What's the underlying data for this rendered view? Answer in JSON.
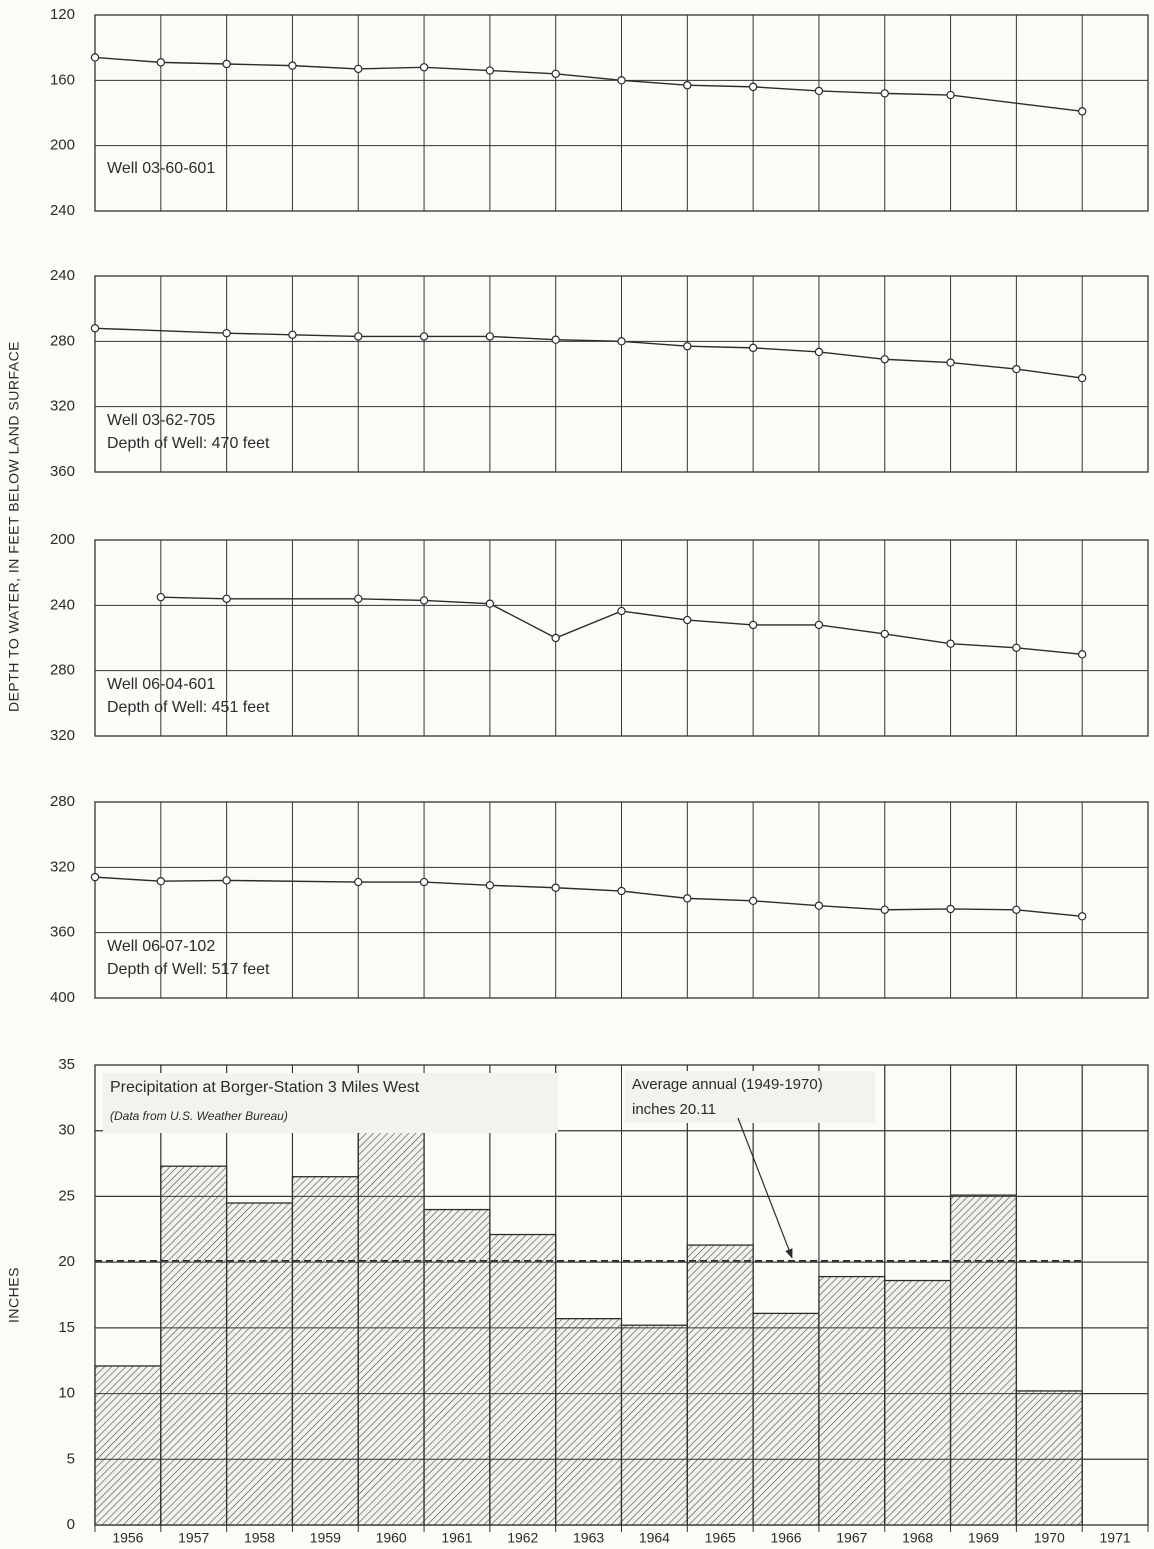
{
  "chart_data": [
    {
      "type": "line",
      "ylabel": "DEPTH TO WATER, IN FEET BELOW LAND SURFACE",
      "labels": [
        "Well 03-60-601"
      ],
      "x": [
        1956,
        1957,
        1958,
        1959,
        1960,
        1961,
        1962,
        1963,
        1964,
        1965,
        1966,
        1967,
        1968,
        1969,
        1971
      ],
      "values": [
        146,
        149,
        150,
        151,
        153,
        152,
        154,
        156,
        160,
        163,
        164,
        166.5,
        168,
        169,
        179
      ],
      "xlim": [
        1956,
        1972
      ],
      "ylim": [
        120,
        240
      ],
      "yticks": [
        120,
        160,
        200,
        240
      ],
      "y_inverted": true,
      "grid": true,
      "color": "#2b2b2b"
    },
    {
      "type": "line",
      "labels": [
        "Well 03-62-705",
        "Depth of Well: 470 feet"
      ],
      "x": [
        1956,
        1958,
        1959,
        1960,
        1961,
        1962,
        1963,
        1964,
        1965,
        1966,
        1967,
        1968,
        1969,
        1970,
        1971
      ],
      "values": [
        272,
        275,
        276,
        277,
        277,
        277,
        279,
        280,
        283,
        284,
        286.5,
        291,
        293,
        297,
        302.5
      ],
      "xlim": [
        1956,
        1972
      ],
      "ylim": [
        240,
        360
      ],
      "yticks": [
        240,
        280,
        320,
        360
      ],
      "y_inverted": true,
      "grid": true,
      "color": "#2b2b2b"
    },
    {
      "type": "line",
      "labels": [
        "Well 06-04-601",
        "Depth of Well: 451 feet"
      ],
      "x": [
        1957,
        1958,
        1960,
        1961,
        1962,
        1963,
        1964,
        1965,
        1966,
        1967,
        1968,
        1969,
        1970,
        1971
      ],
      "values": [
        235,
        236,
        236,
        237,
        239,
        260,
        243.5,
        249,
        252,
        252,
        257.5,
        263.5,
        266,
        270
      ],
      "xlim": [
        1956,
        1972
      ],
      "ylim": [
        200,
        320
      ],
      "yticks": [
        200,
        240,
        280,
        320
      ],
      "y_inverted": true,
      "grid": true,
      "color": "#2b2b2b"
    },
    {
      "type": "line",
      "labels": [
        "Well 06-07-102",
        "Depth of Well: 517 feet"
      ],
      "x": [
        1956,
        1957,
        1958,
        1960,
        1961,
        1962,
        1963,
        1964,
        1965,
        1966,
        1967,
        1968,
        1969,
        1970,
        1971
      ],
      "values": [
        326,
        328.5,
        328,
        329,
        329,
        331,
        332.5,
        334.5,
        339,
        340.5,
        343.5,
        346,
        345.5,
        346,
        350
      ],
      "xlim": [
        1956,
        1972
      ],
      "ylim": [
        280,
        400
      ],
      "yticks": [
        280,
        320,
        360,
        400
      ],
      "y_inverted": true,
      "grid": true,
      "color": "#2b2b2b"
    },
    {
      "type": "bar",
      "title": "Precipitation at Borger-Station 3 Miles West",
      "subtitle": "(Data from U.S. Weather Bureau)",
      "ylabel": "INCHES",
      "annotation": [
        "Average annual (1949-1970)",
        "inches 20.11"
      ],
      "average": 20.11,
      "categories": [
        "1956",
        "1957",
        "1958",
        "1959",
        "1960",
        "1961",
        "1962",
        "1963",
        "1964",
        "1965",
        "1966",
        "1967",
        "1968",
        "1969",
        "1970",
        "1971"
      ],
      "values": [
        12.1,
        27.3,
        24.5,
        26.5,
        30.3,
        24.0,
        22.1,
        15.7,
        15.2,
        21.3,
        16.1,
        18.9,
        18.6,
        25.1,
        10.2,
        null
      ],
      "ylim": [
        0,
        35
      ],
      "yticks": [
        0,
        5,
        10,
        15,
        20,
        25,
        30,
        35
      ],
      "grid": true,
      "color": "#2b2b2b"
    }
  ]
}
